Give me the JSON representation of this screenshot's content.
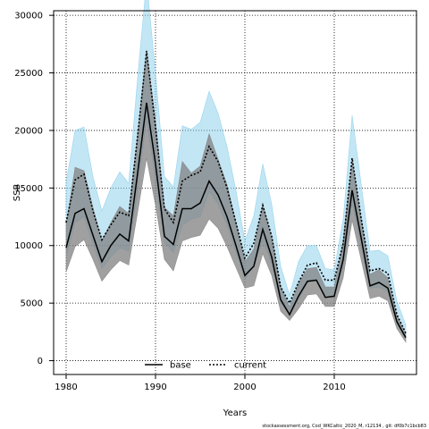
{
  "chart_data": {
    "type": "line",
    "title": "",
    "xlabel": "Years",
    "ylabel": "SSB",
    "xlim": [
      1978.6,
      2019.2
    ],
    "ylim": [
      -1200,
      30400
    ],
    "x_ticks": [
      1980,
      1990,
      2000,
      2010
    ],
    "y_ticks": [
      0,
      5000,
      10000,
      15000,
      20000,
      25000,
      30000
    ],
    "x_tick_labels": [
      "1980",
      "1990",
      "2000",
      "2010"
    ],
    "y_tick_labels": [
      "0",
      "5000",
      "10000",
      "15000",
      "20000",
      "25000",
      "30000"
    ],
    "grid": true,
    "legend": {
      "placement": "bottom-center",
      "entries": [
        {
          "label": "base",
          "style": "solid",
          "color": "#000000"
        },
        {
          "label": "current",
          "style": "dotted",
          "color": "#000000"
        }
      ]
    },
    "x": [
      1980,
      1981,
      1982,
      1983,
      1984,
      1985,
      1986,
      1987,
      1988,
      1989,
      1990,
      1991,
      1992,
      1993,
      1994,
      1995,
      1996,
      1997,
      1998,
      1999,
      2000,
      2001,
      2002,
      2003,
      2004,
      2005,
      2006,
      2007,
      2008,
      2009,
      2010,
      2011,
      2012,
      2013,
      2014,
      2015,
      2016,
      2017,
      2018
    ],
    "series": [
      {
        "name": "current",
        "line_style": "dotted",
        "color": "#000000",
        "band_color": "#87ceeb",
        "values": [
          12000,
          15700,
          16200,
          13000,
          10500,
          11800,
          12900,
          12600,
          19500,
          26900,
          20300,
          13200,
          12000,
          15600,
          16100,
          16400,
          18600,
          17300,
          15000,
          12000,
          8900,
          10200,
          13500,
          10800,
          6400,
          5000,
          6800,
          8300,
          8500,
          7000,
          7000,
          10200,
          17600,
          12400,
          7800,
          8000,
          7600,
          4000,
          2400
        ],
        "upper": [
          15500,
          20000,
          20300,
          16000,
          13000,
          15000,
          16400,
          15400,
          24600,
          33000,
          25000,
          16000,
          15100,
          20400,
          20100,
          20700,
          23400,
          21500,
          18600,
          14800,
          10400,
          12600,
          17100,
          13600,
          8200,
          5700,
          8600,
          10000,
          10000,
          8000,
          7900,
          12300,
          21300,
          15400,
          9500,
          9600,
          9100,
          5200,
          3100
        ],
        "lower": [
          9000,
          12000,
          12500,
          10100,
          8000,
          9000,
          9800,
          9500,
          14800,
          21000,
          15700,
          10300,
          9400,
          11800,
          12300,
          12500,
          14700,
          13600,
          11800,
          9400,
          7100,
          8200,
          10400,
          8400,
          5000,
          4000,
          5300,
          6800,
          6900,
          5700,
          5700,
          8100,
          13700,
          9900,
          6300,
          6400,
          6000,
          3200,
          1900
        ]
      },
      {
        "name": "base",
        "line_style": "solid",
        "color": "#000000",
        "band_color": "#808080",
        "values": [
          9800,
          12800,
          13200,
          10900,
          8600,
          10000,
          11000,
          10400,
          16300,
          22400,
          17100,
          10800,
          10100,
          13200,
          13200,
          13700,
          15600,
          14400,
          12500,
          10000,
          7400,
          8200,
          11400,
          9000,
          5300,
          4000,
          5600,
          6900,
          7000,
          5500,
          5600,
          8800,
          14800,
          10700,
          6500,
          6800,
          6300,
          3400,
          2000
        ],
        "upper": [
          11800,
          16800,
          16500,
          13300,
          10400,
          12000,
          13400,
          12800,
          19700,
          27000,
          20800,
          13300,
          12600,
          17300,
          16300,
          16900,
          19700,
          17500,
          15300,
          12000,
          8600,
          9700,
          13600,
          10700,
          6400,
          4700,
          6700,
          8000,
          8100,
          6400,
          6400,
          10400,
          17400,
          12500,
          7500,
          7900,
          7200,
          3900,
          2300
        ],
        "lower": [
          7700,
          9900,
          10500,
          8800,
          6900,
          7900,
          8700,
          8300,
          12900,
          17600,
          13500,
          8800,
          7800,
          10400,
          10700,
          10900,
          12300,
          11500,
          9900,
          8100,
          6300,
          6500,
          9300,
          7400,
          4300,
          3500,
          4500,
          5700,
          5800,
          4700,
          4700,
          7200,
          12200,
          8800,
          5400,
          5600,
          5200,
          2800,
          1600
        ]
      }
    ],
    "footnote": "stockassessment.org, Cod_WKCaltic_2020_M, r12134 , git: df0b7c1bcb83"
  }
}
